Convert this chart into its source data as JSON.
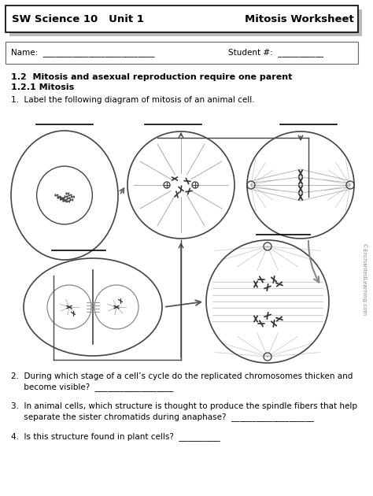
{
  "title_left": "SW Science 10   Unit 1",
  "title_right": "Mitosis Worksheet",
  "bg_color": "#ffffff",
  "shadow_color": "#bbbbbb",
  "border_color": "#333333",
  "cell_color": "#444444",
  "watermark": "©EnchantedLearning.com",
  "q2_line1": "2.  During which stage of a cell’s cycle do the replicated chromosomes thicken and",
  "q2_line2": "     become visible?  ___________________",
  "q3_line1": "3.  In animal cells, which structure is thought to produce the spindle fibers that help",
  "q3_line2": "     separate the sister chromatids during anaphase?  ____________________",
  "q4": "4.  Is this structure found in plant cells?  __________",
  "header1": "1.2  Mitosis and asexual reproduction require one parent",
  "header2": "1.2.1 Mitosis",
  "q1": "1.  Label the following diagram of mitosis of an animal cell.",
  "fig_w": 4.74,
  "fig_h": 6.3,
  "dpi": 100
}
